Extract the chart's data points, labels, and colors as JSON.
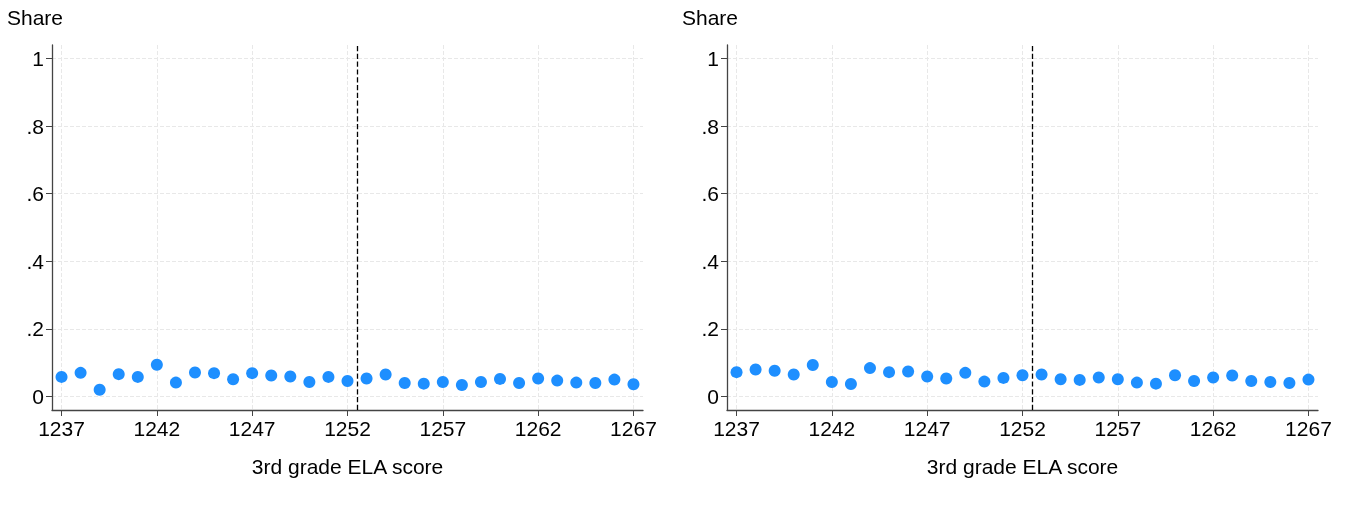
{
  "chart_data": [
    {
      "type": "scatter",
      "ylabel": "Share",
      "xlabel": "3rd grade ELA score",
      "marker": "circle",
      "grid": true,
      "xlim": [
        1236.5,
        1267.5
      ],
      "xticks": [
        1237,
        1242,
        1247,
        1252,
        1257,
        1262,
        1267
      ],
      "ylim": [
        -0.04,
        1.04
      ],
      "yticks": [
        {
          "value": 0,
          "label": "0"
        },
        {
          "value": 0.2,
          "label": ".2"
        },
        {
          "value": 0.4,
          "label": ".4"
        },
        {
          "value": 0.6,
          "label": ".6"
        },
        {
          "value": 0.8,
          "label": ".8"
        },
        {
          "value": 1,
          "label": "1"
        }
      ],
      "x": [
        1237,
        1238,
        1239,
        1240,
        1241,
        1242,
        1243,
        1244,
        1245,
        1246,
        1247,
        1248,
        1249,
        1250,
        1251,
        1252,
        1253,
        1254,
        1255,
        1256,
        1257,
        1258,
        1259,
        1260,
        1261,
        1262,
        1263,
        1264,
        1265,
        1266,
        1267
      ],
      "series": [
        {
          "color": "#1e8fff",
          "values": [
            0.058,
            0.07,
            0.02,
            0.066,
            0.058,
            0.094,
            0.041,
            0.071,
            0.069,
            0.051,
            0.069,
            0.062,
            0.059,
            0.043,
            0.058,
            0.046,
            0.053,
            0.065,
            0.04,
            0.038,
            0.043,
            0.034,
            0.043,
            0.052,
            0.04,
            0.053,
            0.047,
            0.041,
            0.04,
            0.05,
            0.036
          ]
        }
      ],
      "ref_lines": [
        {
          "axis": "x",
          "value": 1252.5,
          "color": "#000000",
          "line_style": "dashed"
        }
      ]
    },
    {
      "type": "scatter",
      "ylabel": "Share",
      "xlabel": "3rd grade ELA score",
      "marker": "circle",
      "grid": true,
      "xlim": [
        1236.5,
        1267.5
      ],
      "xticks": [
        1237,
        1242,
        1247,
        1252,
        1257,
        1262,
        1267
      ],
      "ylim": [
        -0.04,
        1.04
      ],
      "yticks": [
        {
          "value": 0,
          "label": "0"
        },
        {
          "value": 0.2,
          "label": ".2"
        },
        {
          "value": 0.4,
          "label": ".4"
        },
        {
          "value": 0.6,
          "label": ".6"
        },
        {
          "value": 0.8,
          "label": ".8"
        },
        {
          "value": 1,
          "label": "1"
        }
      ],
      "x": [
        1237,
        1238,
        1239,
        1240,
        1241,
        1242,
        1243,
        1244,
        1245,
        1246,
        1247,
        1248,
        1249,
        1250,
        1251,
        1252,
        1253,
        1254,
        1255,
        1256,
        1257,
        1258,
        1259,
        1260,
        1261,
        1262,
        1263,
        1264,
        1265,
        1266,
        1267
      ],
      "series": [
        {
          "color": "#1e8fff",
          "values": [
            0.072,
            0.08,
            0.076,
            0.065,
            0.093,
            0.043,
            0.037,
            0.084,
            0.072,
            0.074,
            0.059,
            0.053,
            0.07,
            0.044,
            0.055,
            0.063,
            0.065,
            0.051,
            0.049,
            0.056,
            0.051,
            0.041,
            0.038,
            0.063,
            0.046,
            0.056,
            0.062,
            0.046,
            0.043,
            0.04,
            0.05
          ]
        }
      ],
      "ref_lines": [
        {
          "axis": "x",
          "value": 1252.5,
          "color": "#000000",
          "line_style": "dashed"
        }
      ]
    }
  ]
}
